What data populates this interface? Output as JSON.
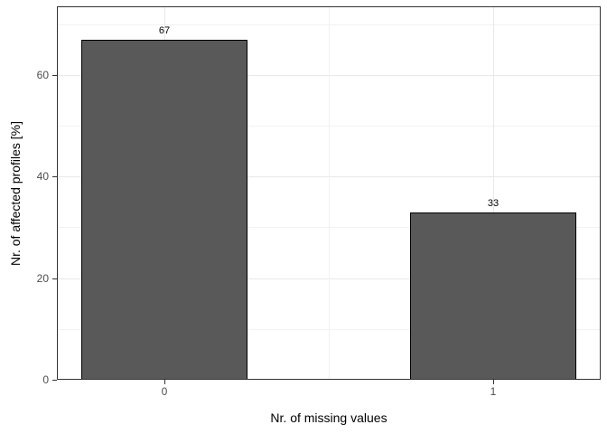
{
  "chart_data": {
    "type": "bar",
    "title": "",
    "xlabel": "Nr. of missing values",
    "ylabel": "Nr. of affected profiles [%]",
    "categories": [
      "0",
      "1"
    ],
    "values": [
      67,
      33
    ],
    "bar_labels": [
      "67",
      "33"
    ],
    "ylim": [
      0,
      73.5
    ],
    "y_major_ticks": [
      0,
      20,
      40,
      60
    ],
    "y_minor_gridlines": [
      10,
      30,
      50,
      70
    ],
    "grid": "on",
    "legend_position": "none",
    "colors": {
      "background": "#ffffff",
      "bar_fill": "#595959",
      "bar_border": "#000000",
      "panel_border": "#333333",
      "major_grid": "#e8e8e8",
      "minor_grid": "#f2f2f2",
      "tick_mark": "#333333",
      "tick_label": "#4d4d4d",
      "axis_title": "#000000",
      "bar_label": "#000000"
    }
  }
}
